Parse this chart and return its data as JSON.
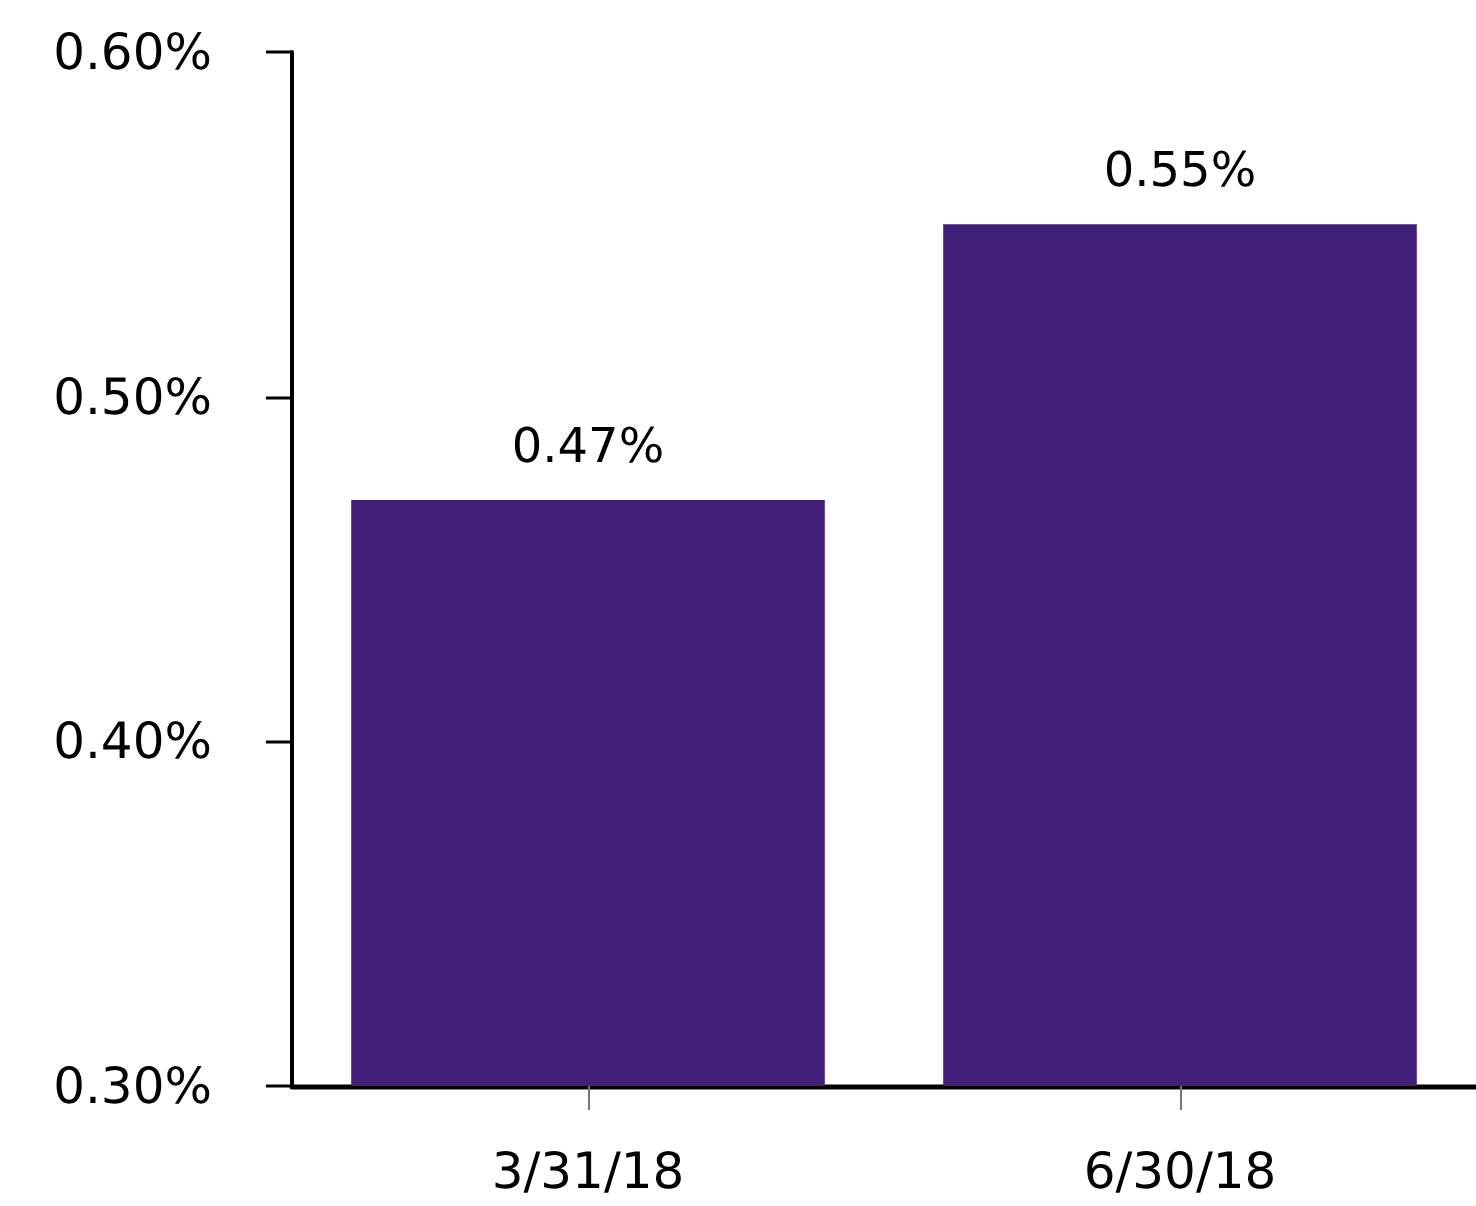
{
  "chart_data": {
    "type": "bar",
    "categories": [
      "3/31/18",
      "6/30/18"
    ],
    "values": [
      0.47,
      0.55
    ],
    "color": "#411f78",
    "ylim": [
      0.3,
      0.6
    ],
    "yticks": [
      {
        "value": 0.3,
        "label": "0.30%"
      },
      {
        "value": 0.4,
        "label": "0.40%"
      },
      {
        "value": 0.5,
        "label": "0.50%"
      },
      {
        "value": 0.6,
        "label": "0.60%"
      }
    ],
    "value_labels": [
      "0.47%",
      "0.55%"
    ]
  }
}
